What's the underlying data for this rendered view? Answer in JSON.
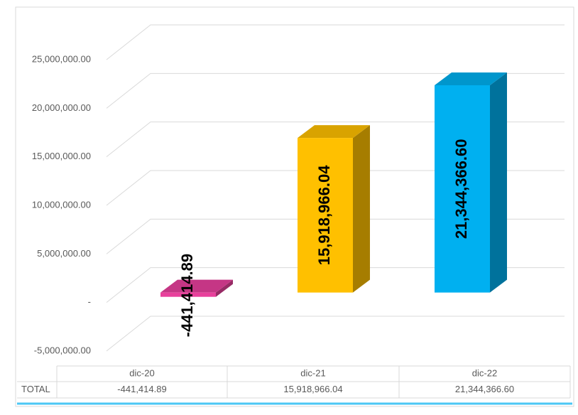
{
  "chart_data": {
    "type": "bar3d",
    "categories": [
      "dic-20",
      "dic-21",
      "dic-22"
    ],
    "series": [
      {
        "name": "TOTAL",
        "values": [
          -441414.89,
          15918966.04,
          21344366.6
        ],
        "value_labels": [
          "-441,414.89",
          "15,918,966.04",
          "21,344,366.60"
        ],
        "colors": [
          "#e8409c",
          "#ffc000",
          "#00b0f0"
        ]
      }
    ],
    "ylim": [
      -5000000,
      25000000
    ],
    "yticks": [
      {
        "value": -5000000,
        "label": "-5,000,000.00"
      },
      {
        "value": 0,
        "label": "-"
      },
      {
        "value": 5000000,
        "label": "5,000,000.00"
      },
      {
        "value": 10000000,
        "label": "10,000,000.00"
      },
      {
        "value": 15000000,
        "label": "15,000,000.00"
      },
      {
        "value": 20000000,
        "label": "20,000,000.00"
      },
      {
        "value": 25000000,
        "label": "25,000,000.00"
      }
    ],
    "grid": true
  }
}
